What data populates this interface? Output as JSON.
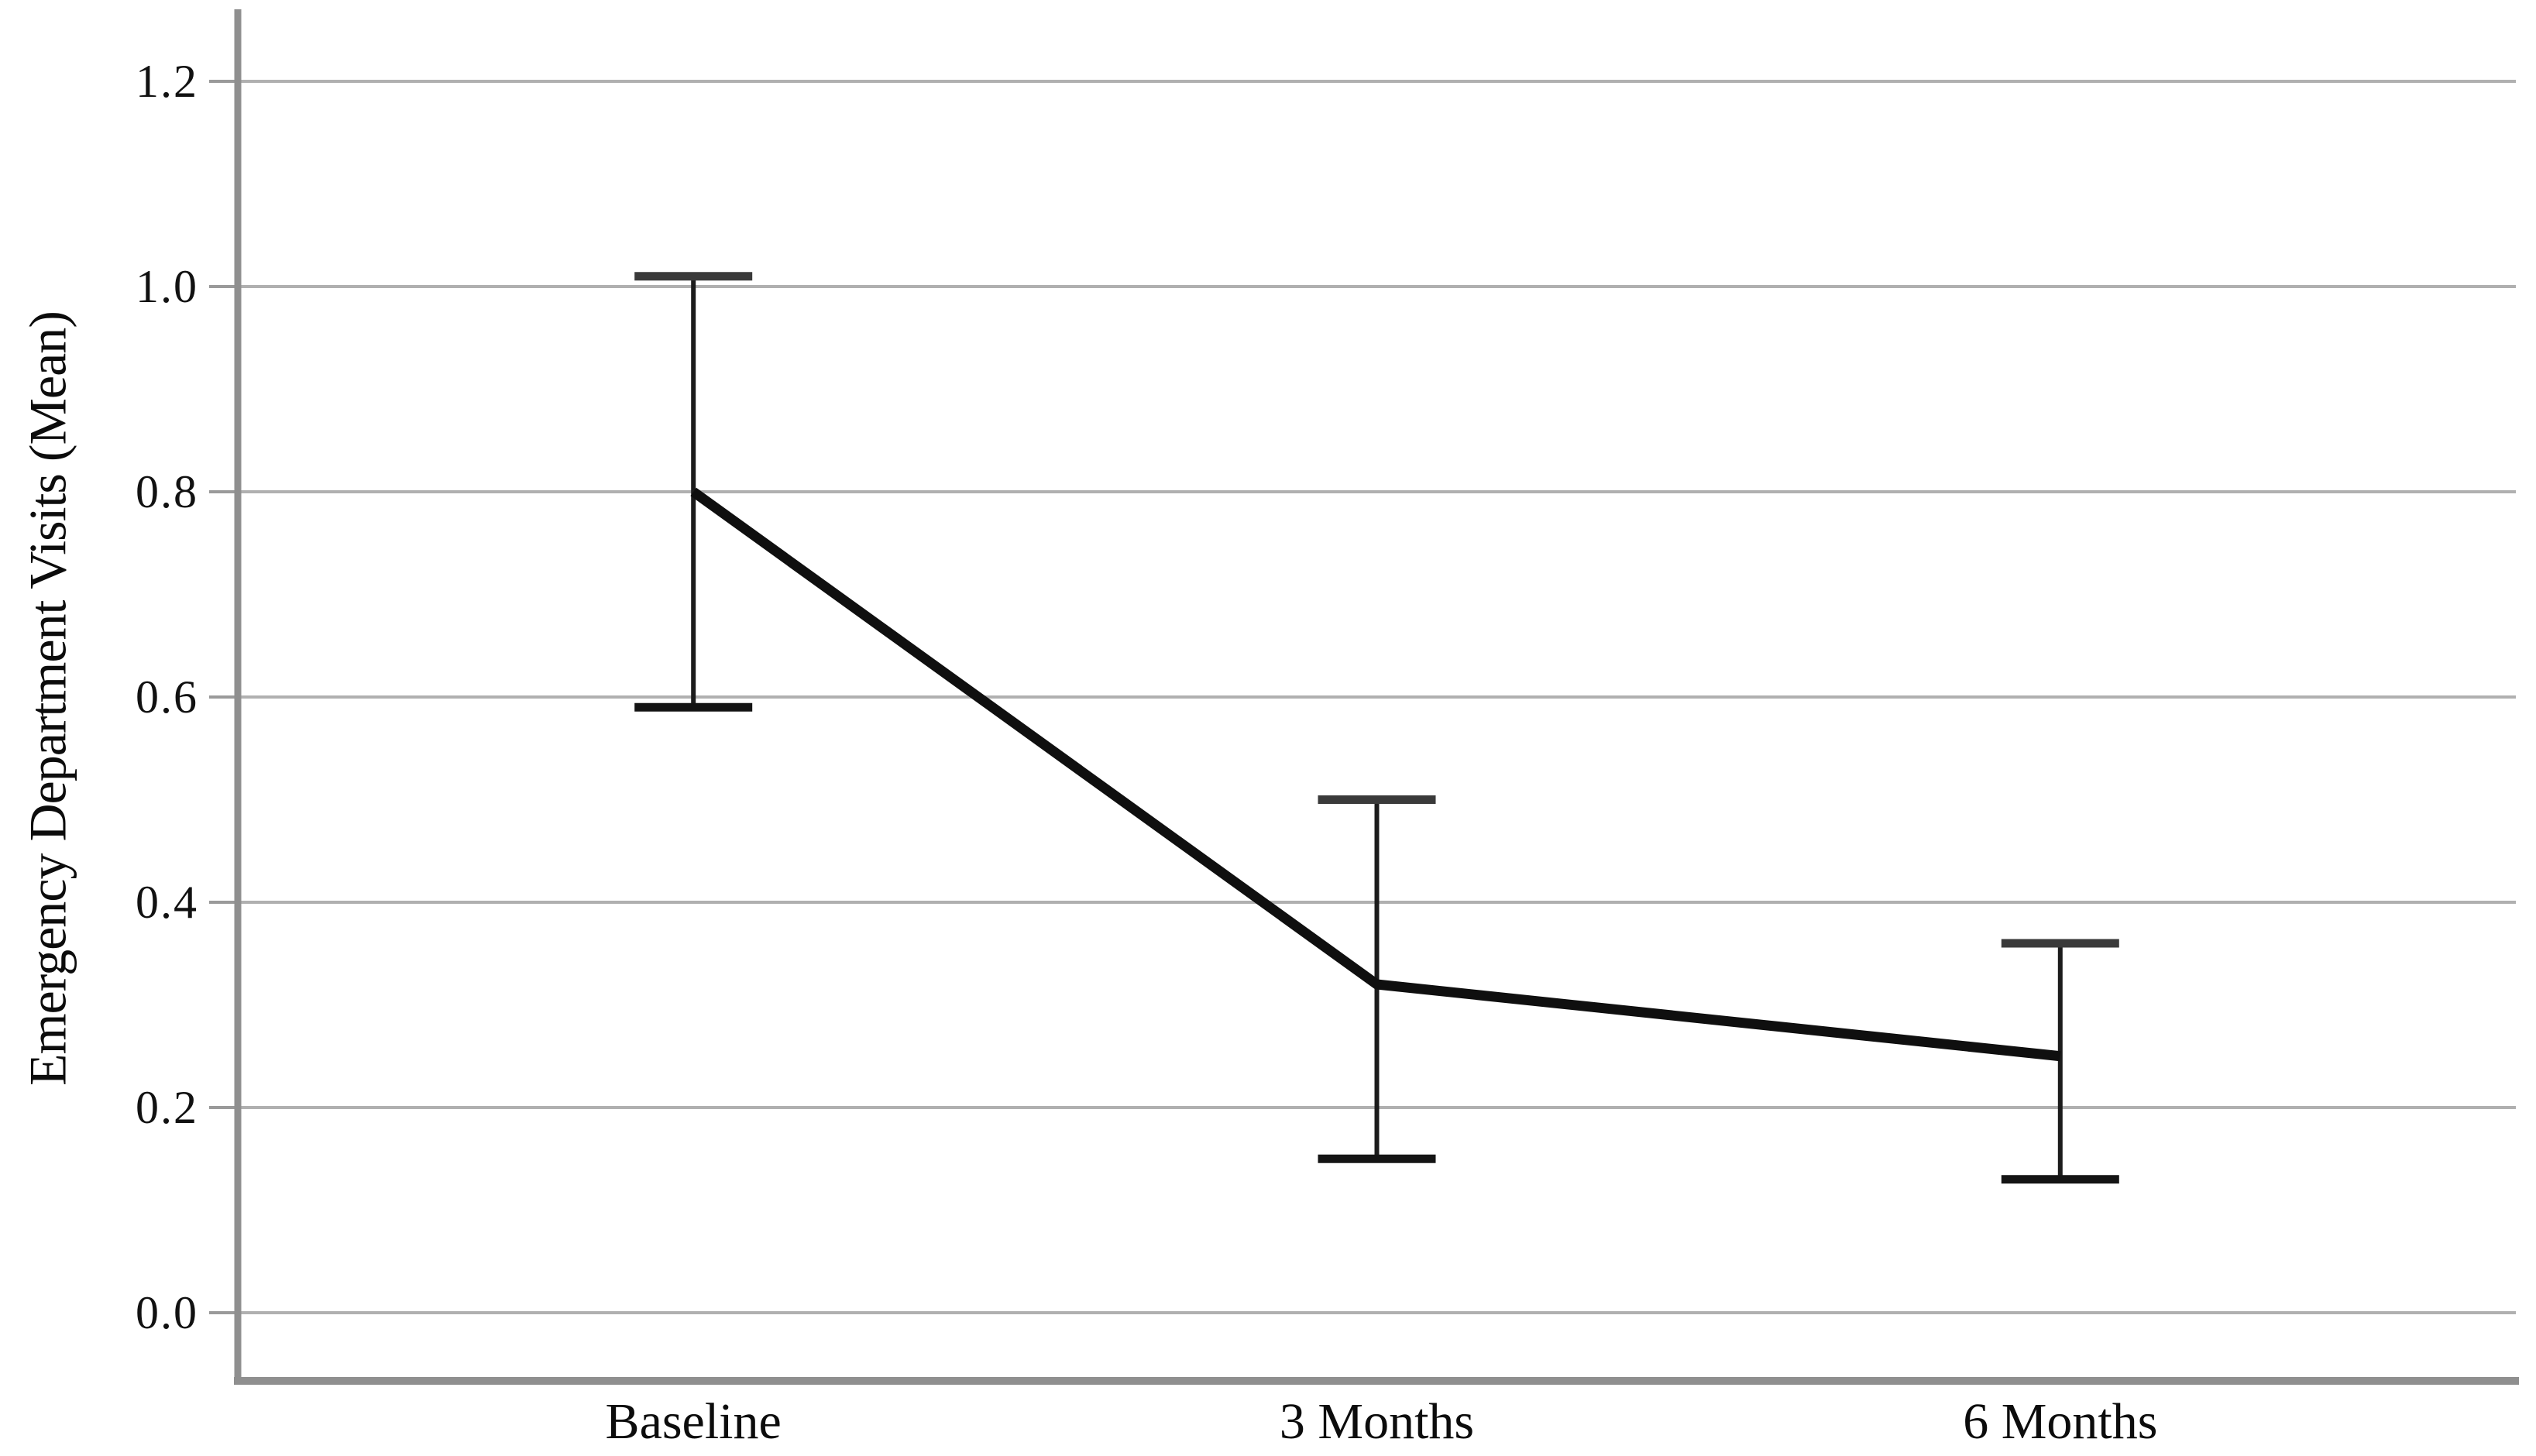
{
  "chart_data": {
    "type": "line",
    "title": "",
    "xlabel": "",
    "ylabel": "Emergency Department Visits (Mean)",
    "categories": [
      "Baseline",
      "3 Months",
      "6 Months"
    ],
    "series": [
      {
        "name": "Emergency Department Visits (Mean)",
        "values": [
          0.8,
          0.32,
          0.25
        ],
        "error_upper": [
          1.01,
          0.5,
          0.36
        ],
        "error_lower": [
          0.59,
          0.15,
          0.13
        ]
      }
    ],
    "y_ticks": [
      0.0,
      0.2,
      0.4,
      0.6,
      0.8,
      1.0,
      1.2
    ],
    "y_tick_labels": [
      "0.0",
      "0.2",
      "0.4",
      "0.6",
      "0.8",
      "1.0",
      "1.2"
    ],
    "ylim": [
      0.0,
      1.2
    ],
    "grid": "horizontal",
    "legend": "none",
    "error_bar_style": "caps"
  },
  "colors": {
    "background": "#ffffff",
    "data_line": "#0f0f0f",
    "error_stem": "#1c1c1c",
    "error_cap_upper": "#3a3a3a",
    "error_cap_lower": "#141414",
    "gridline": "#b0b0b0",
    "axis_line": "#8f8f8f",
    "tick_mark": "#9a9a9a",
    "text": "#0c0c0c"
  }
}
